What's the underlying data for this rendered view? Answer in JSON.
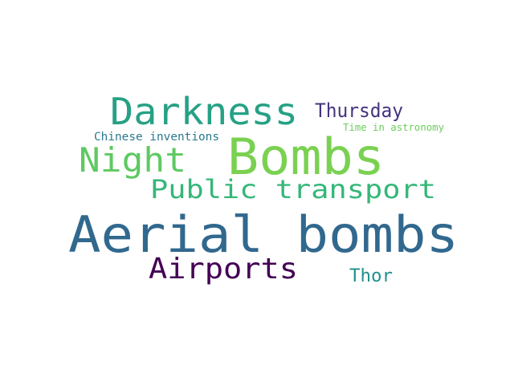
{
  "word_cloud": {
    "words": [
      {
        "text": "Aerial bombs",
        "color": "#31688e"
      },
      {
        "text": "Bombs",
        "color": "#7ad151"
      },
      {
        "text": "Darkness",
        "color": "#26a185"
      },
      {
        "text": "Night",
        "color": "#5ec962"
      },
      {
        "text": "Public transport",
        "color": "#35b779"
      },
      {
        "text": "Airports",
        "color": "#440154"
      },
      {
        "text": "Thursday",
        "color": "#46337e"
      },
      {
        "text": "Thor",
        "color": "#21918c"
      },
      {
        "text": "Chinese inventions",
        "color": "#2a788e"
      },
      {
        "text": "Time in astronomy",
        "color": "#6ccd5a"
      }
    ]
  }
}
